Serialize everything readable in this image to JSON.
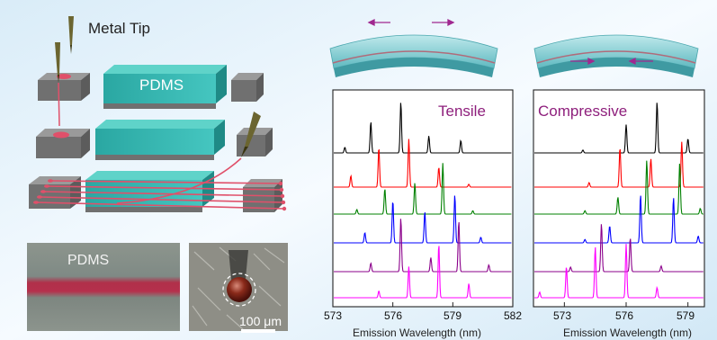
{
  "labels": {
    "metal_tip": "Metal Tip",
    "pdms_block": "PDMS",
    "pdms_photo": "PDMS",
    "scale_bar": "100 μm",
    "tensile": "Tensile",
    "compressive": "Compressive"
  },
  "chart_data": [
    {
      "type": "line",
      "name_label": "Tensile",
      "xlabel": "Emission Wavelength (nm)",
      "xlim": [
        573,
        582
      ],
      "xticks": [
        573,
        576,
        579,
        582
      ],
      "curves_top_to_bottom": [
        {
          "color": "#000000",
          "peaks": [
            [
              573.6,
              0.1
            ],
            [
              574.9,
              0.55
            ],
            [
              576.4,
              0.9
            ],
            [
              577.8,
              0.3
            ],
            [
              579.4,
              0.22
            ]
          ]
        },
        {
          "color": "#ff0000",
          "peaks": [
            [
              573.9,
              0.2
            ],
            [
              575.3,
              0.7
            ],
            [
              576.8,
              0.85
            ],
            [
              578.3,
              0.35
            ],
            [
              579.8,
              0.05
            ]
          ]
        },
        {
          "color": "#008000",
          "peaks": [
            [
              574.2,
              0.08
            ],
            [
              575.6,
              0.45
            ],
            [
              577.1,
              0.55
            ],
            [
              578.5,
              0.9
            ],
            [
              580.0,
              0.06
            ]
          ]
        },
        {
          "color": "#0000ff",
          "peaks": [
            [
              574.6,
              0.18
            ],
            [
              576.0,
              0.75
            ],
            [
              577.6,
              0.55
            ],
            [
              579.1,
              0.85
            ],
            [
              580.4,
              0.1
            ]
          ]
        },
        {
          "color": "#8b008b",
          "peaks": [
            [
              574.9,
              0.15
            ],
            [
              576.4,
              0.95
            ],
            [
              577.9,
              0.25
            ],
            [
              579.3,
              0.9
            ],
            [
              580.8,
              0.12
            ]
          ]
        },
        {
          "color": "#ff00ff",
          "peaks": [
            [
              575.3,
              0.12
            ],
            [
              576.8,
              0.55
            ],
            [
              578.3,
              0.95
            ],
            [
              579.8,
              0.25
            ]
          ]
        }
      ]
    },
    {
      "type": "line",
      "name_label": "Compressive",
      "xlabel": "Emission Wavelength (nm)",
      "xlim": [
        571.5,
        579.8
      ],
      "xticks": [
        573,
        576,
        579
      ],
      "curves_top_to_bottom": [
        {
          "color": "#000000",
          "peaks": [
            [
              573.9,
              0.05
            ],
            [
              576.0,
              0.5
            ],
            [
              577.5,
              0.9
            ],
            [
              579.0,
              0.25
            ]
          ]
        },
        {
          "color": "#ff0000",
          "peaks": [
            [
              574.2,
              0.08
            ],
            [
              575.7,
              0.7
            ],
            [
              577.2,
              0.5
            ],
            [
              578.7,
              0.8
            ]
          ]
        },
        {
          "color": "#008000",
          "peaks": [
            [
              574.0,
              0.06
            ],
            [
              575.6,
              0.3
            ],
            [
              577.0,
              0.95
            ],
            [
              578.6,
              0.9
            ],
            [
              579.6,
              0.1
            ]
          ]
        },
        {
          "color": "#0000ff",
          "peaks": [
            [
              574.0,
              0.06
            ],
            [
              575.2,
              0.3
            ],
            [
              576.7,
              0.85
            ],
            [
              578.3,
              0.8
            ],
            [
              579.5,
              0.12
            ]
          ]
        },
        {
          "color": "#8b008b",
          "peaks": [
            [
              573.3,
              0.08
            ],
            [
              574.8,
              0.85
            ],
            [
              576.2,
              0.6
            ],
            [
              577.7,
              0.1
            ]
          ]
        },
        {
          "color": "#ff00ff",
          "peaks": [
            [
              571.8,
              0.1
            ],
            [
              573.1,
              0.55
            ],
            [
              574.5,
              0.9
            ],
            [
              576.0,
              0.95
            ],
            [
              577.5,
              0.18
            ]
          ]
        }
      ]
    }
  ]
}
